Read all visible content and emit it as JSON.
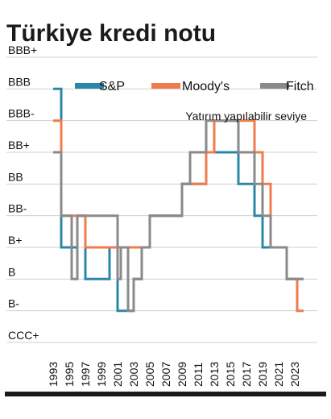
{
  "chart_data": {
    "type": "line",
    "step": "post",
    "title": "Türkiye kredi notu",
    "xlabel": "",
    "ylabel": "",
    "x_tick_labels": [
      "1993",
      "1995",
      "1997",
      "1999",
      "2001",
      "2003",
      "2005",
      "2007",
      "2009",
      "2011",
      "2013",
      "2015",
      "2017",
      "2019",
      "2021",
      "2023"
    ],
    "xlim": [
      1993,
      2024.5
    ],
    "y_categories": [
      "CCC+",
      "B-",
      "B",
      "B+",
      "BB-",
      "BB",
      "BB+",
      "BBB-",
      "BBB",
      "BBB+"
    ],
    "y_tick_labels": [
      "BBB+",
      "BBB",
      "BBB-",
      "BB+",
      "BB",
      "BB-",
      "B+",
      "B",
      "B-",
      "CCC+"
    ],
    "legend_position": "top",
    "annotation": "Yatırım yapılabilir seviye",
    "grid": true,
    "series": [
      {
        "name": "S&P",
        "color": "#2b87a8",
        "x": [
          1993,
          1994,
          1996,
          1997,
          2000,
          2001,
          2003,
          2004,
          2005,
          2009,
          2012,
          2016,
          2018,
          2019,
          2022,
          2024
        ],
        "y": [
          "BBB",
          "B+",
          "BB-",
          "B",
          "B+",
          "B-",
          "B",
          "B+",
          "BB-",
          "BB",
          "BB+",
          "BB",
          "BB-",
          "B+",
          "B",
          "B"
        ]
      },
      {
        "name": "Moody's",
        "color": "#f07c4c",
        "x": [
          1993,
          1994,
          1995,
          1997,
          2005,
          2009,
          2012,
          2013,
          2018,
          2019,
          2020,
          2022,
          2023.3,
          2024.1
        ],
        "y": [
          "BBB-",
          "BB-",
          "BB-",
          "B+",
          "BB-",
          "BB",
          "BB+",
          "BBB-",
          "BB+",
          "BB",
          "B+",
          "B",
          "B-",
          "B-"
        ]
      },
      {
        "name": "Fitch",
        "color": "#8a8a8a",
        "x": [
          1993,
          1994,
          1995.3,
          1996,
          2000,
          2001,
          2001.4,
          2002.3,
          2003,
          2004,
          2005,
          2009,
          2010,
          2012,
          2016,
          2018,
          2019,
          2020,
          2022,
          2023.3,
          2024.1
        ],
        "y": [
          "BB+",
          "BB-",
          "B",
          "BB-",
          "BB-",
          "B",
          "B+",
          "B-",
          "B",
          "B+",
          "BB-",
          "BB",
          "BB+",
          "BBB-",
          "BB+",
          "BB",
          "BB-",
          "B+",
          "B",
          "B",
          "B"
        ]
      }
    ]
  }
}
